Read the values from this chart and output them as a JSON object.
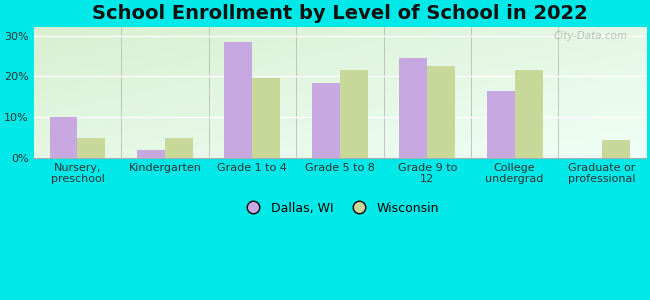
{
  "title": "School Enrollment by Level of School in 2022",
  "categories": [
    "Nursery,\npreschool",
    "Kindergarten",
    "Grade 1 to 4",
    "Grade 5 to 8",
    "Grade 9 to\n12",
    "College\nundergrad",
    "Graduate or\nprofessional"
  ],
  "dallas_values": [
    10.0,
    2.0,
    28.5,
    18.5,
    24.5,
    16.5,
    0.0
  ],
  "wisconsin_values": [
    5.0,
    5.0,
    19.5,
    21.5,
    22.5,
    21.5,
    4.5
  ],
  "dallas_color": "#c8a8e0",
  "wisconsin_color": "#c8d898",
  "ylim": [
    0,
    32
  ],
  "yticks": [
    0,
    10,
    20,
    30
  ],
  "ytick_labels": [
    "0%",
    "10%",
    "20%",
    "30%"
  ],
  "legend_labels": [
    "Dallas, WI",
    "Wisconsin"
  ],
  "bg_color": "#00e8e8",
  "plot_bg_top_left": "#d8f0d0",
  "plot_bg_bottom_right": "#f0fff8",
  "watermark": "City-Data.com",
  "title_fontsize": 14,
  "label_fontsize": 8,
  "bar_width": 0.32
}
